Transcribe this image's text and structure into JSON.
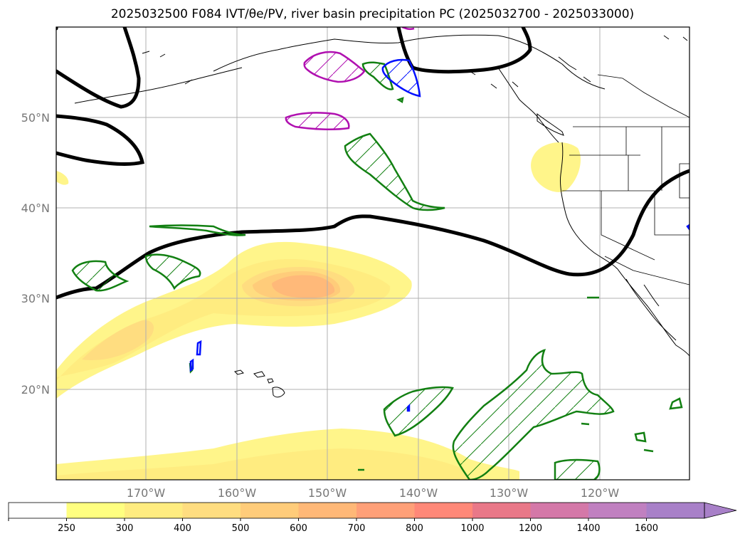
{
  "title": "2025032500 F084 IVT/θe/PV, river basin precipitation PC (2025032700 - 2025033000)",
  "map": {
    "lat_labels": [
      "50°N",
      "40°N",
      "30°N",
      "20°N"
    ],
    "lon_labels": [
      "170°W",
      "160°W",
      "150°W",
      "140°W",
      "130°W",
      "120°W"
    ]
  },
  "colorbar": {
    "ticks": [
      "250",
      "300",
      "400",
      "500",
      "600",
      "700",
      "800",
      "1000",
      "1200",
      "1400",
      "1600"
    ],
    "colors": [
      "#ffffff",
      "#ffff80",
      "#ffec80",
      "#ffdd80",
      "#ffcc7a",
      "#ffb877",
      "#ffa078",
      "#ff8878",
      "#e97888",
      "#d478a8",
      "#c080c0",
      "#a880c8"
    ]
  },
  "colors": {
    "ivt_light": "#fff58a",
    "ivt_mid": "#ffe07a",
    "ivt_core": "#ffb979",
    "pv_green": "#128012",
    "pv_magenta": "#b010b0",
    "pv_blue": "#0010ff",
    "theta_black": "#000000"
  }
}
